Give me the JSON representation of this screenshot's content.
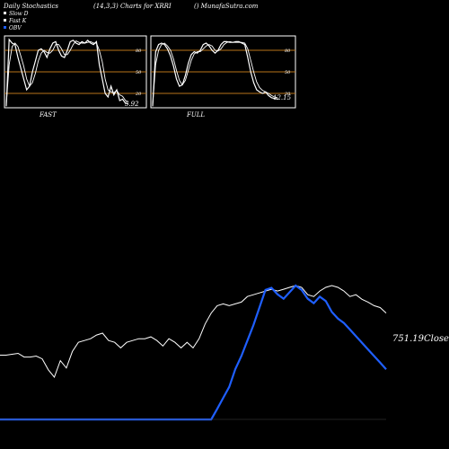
{
  "header": {
    "left": "Daily Stochastics",
    "center": "(14,3,3) Charts for XRRI",
    "right": "() MunafaSutra.com"
  },
  "legend": [
    {
      "label": "Slow  D",
      "color": "#ffffff"
    },
    {
      "label": "Fast K",
      "color": "#ffffff"
    },
    {
      "label": "OBV",
      "color": "#1f5fff"
    }
  ],
  "colors": {
    "background": "#000000",
    "panel_bg": "#000000",
    "level_line": "#b8741a",
    "stoch_line": "#ffffff",
    "obv_line": "#1f5fff",
    "close_line": "#ffffff"
  },
  "chart_data": [
    {
      "type": "line",
      "name": "fast-stochastics",
      "label": "FAST",
      "value_label": "5.92",
      "ylim": [
        0,
        100
      ],
      "yticks": [
        20,
        50,
        80
      ],
      "series": [
        {
          "name": "Fast K",
          "values": [
            2,
            95,
            90,
            88,
            70,
            55,
            40,
            25,
            30,
            50,
            65,
            80,
            82,
            78,
            70,
            82,
            90,
            92,
            80,
            72,
            70,
            80,
            92,
            94,
            90,
            88,
            92,
            90,
            94,
            90,
            88,
            92,
            60,
            40,
            20,
            15,
            30,
            18,
            25,
            10,
            12,
            6,
            5.92
          ]
        },
        {
          "name": "Slow D",
          "values": [
            5,
            60,
            85,
            90,
            85,
            72,
            58,
            40,
            30,
            35,
            48,
            65,
            76,
            80,
            77,
            76,
            80,
            88,
            88,
            82,
            74,
            74,
            80,
            88,
            93,
            91,
            90,
            90,
            91,
            92,
            90,
            90,
            80,
            64,
            40,
            25,
            22,
            21,
            24,
            18,
            16,
            10,
            8
          ]
        }
      ]
    },
    {
      "type": "line",
      "name": "full-stochastics",
      "label": "FULL",
      "value_label": "12.15",
      "ylim": [
        0,
        100
      ],
      "yticks": [
        20,
        50,
        80
      ],
      "series": [
        {
          "name": "Fast K",
          "values": [
            2,
            78,
            88,
            90,
            88,
            82,
            72,
            58,
            40,
            30,
            32,
            45,
            62,
            74,
            78,
            76,
            80,
            88,
            90,
            86,
            80,
            76,
            80,
            88,
            92,
            92,
            91,
            91,
            92,
            92,
            90,
            88,
            70,
            50,
            35,
            25,
            22,
            20,
            22,
            17,
            14,
            13,
            12.15
          ]
        },
        {
          "name": "Slow D",
          "values": [
            4,
            60,
            80,
            88,
            90,
            86,
            80,
            68,
            52,
            38,
            32,
            38,
            52,
            66,
            75,
            78,
            78,
            82,
            86,
            88,
            86,
            80,
            79,
            82,
            88,
            91,
            92,
            91,
            91,
            91,
            91,
            90,
            82,
            66,
            50,
            36,
            28,
            24,
            22,
            20,
            17,
            15,
            14
          ]
        }
      ]
    },
    {
      "type": "line",
      "name": "price-obv",
      "close_label": "751.19Close",
      "series": [
        {
          "name": "Close",
          "values": [
            54,
            54,
            55,
            56,
            52,
            52,
            53,
            50,
            38,
            30,
            48,
            40,
            58,
            68,
            70,
            72,
            76,
            78,
            70,
            68,
            62,
            68,
            70,
            72,
            72,
            74,
            70,
            64,
            72,
            68,
            62,
            68,
            62,
            72,
            88,
            100,
            108,
            110,
            108,
            110,
            112,
            118,
            120,
            122,
            124,
            126,
            124,
            126,
            128,
            130,
            128,
            120,
            118,
            124,
            128,
            130,
            128,
            124,
            118,
            120,
            115,
            112,
            108,
            106,
            100
          ]
        },
        {
          "name": "OBV",
          "values": [
            6,
            6,
            6,
            6,
            6,
            6,
            6,
            6,
            6,
            6,
            6,
            6,
            6,
            6,
            6,
            6,
            6,
            6,
            6,
            6,
            6,
            6,
            6,
            6,
            6,
            6,
            6,
            6,
            6,
            6,
            6,
            6,
            6,
            6,
            6,
            6,
            30,
            55,
            80,
            120,
            150,
            185,
            220,
            260,
            300,
            305,
            290,
            280,
            295,
            310,
            300,
            280,
            270,
            285,
            275,
            250,
            235,
            225,
            210,
            195,
            180,
            165,
            150,
            135,
            120
          ]
        }
      ]
    }
  ]
}
